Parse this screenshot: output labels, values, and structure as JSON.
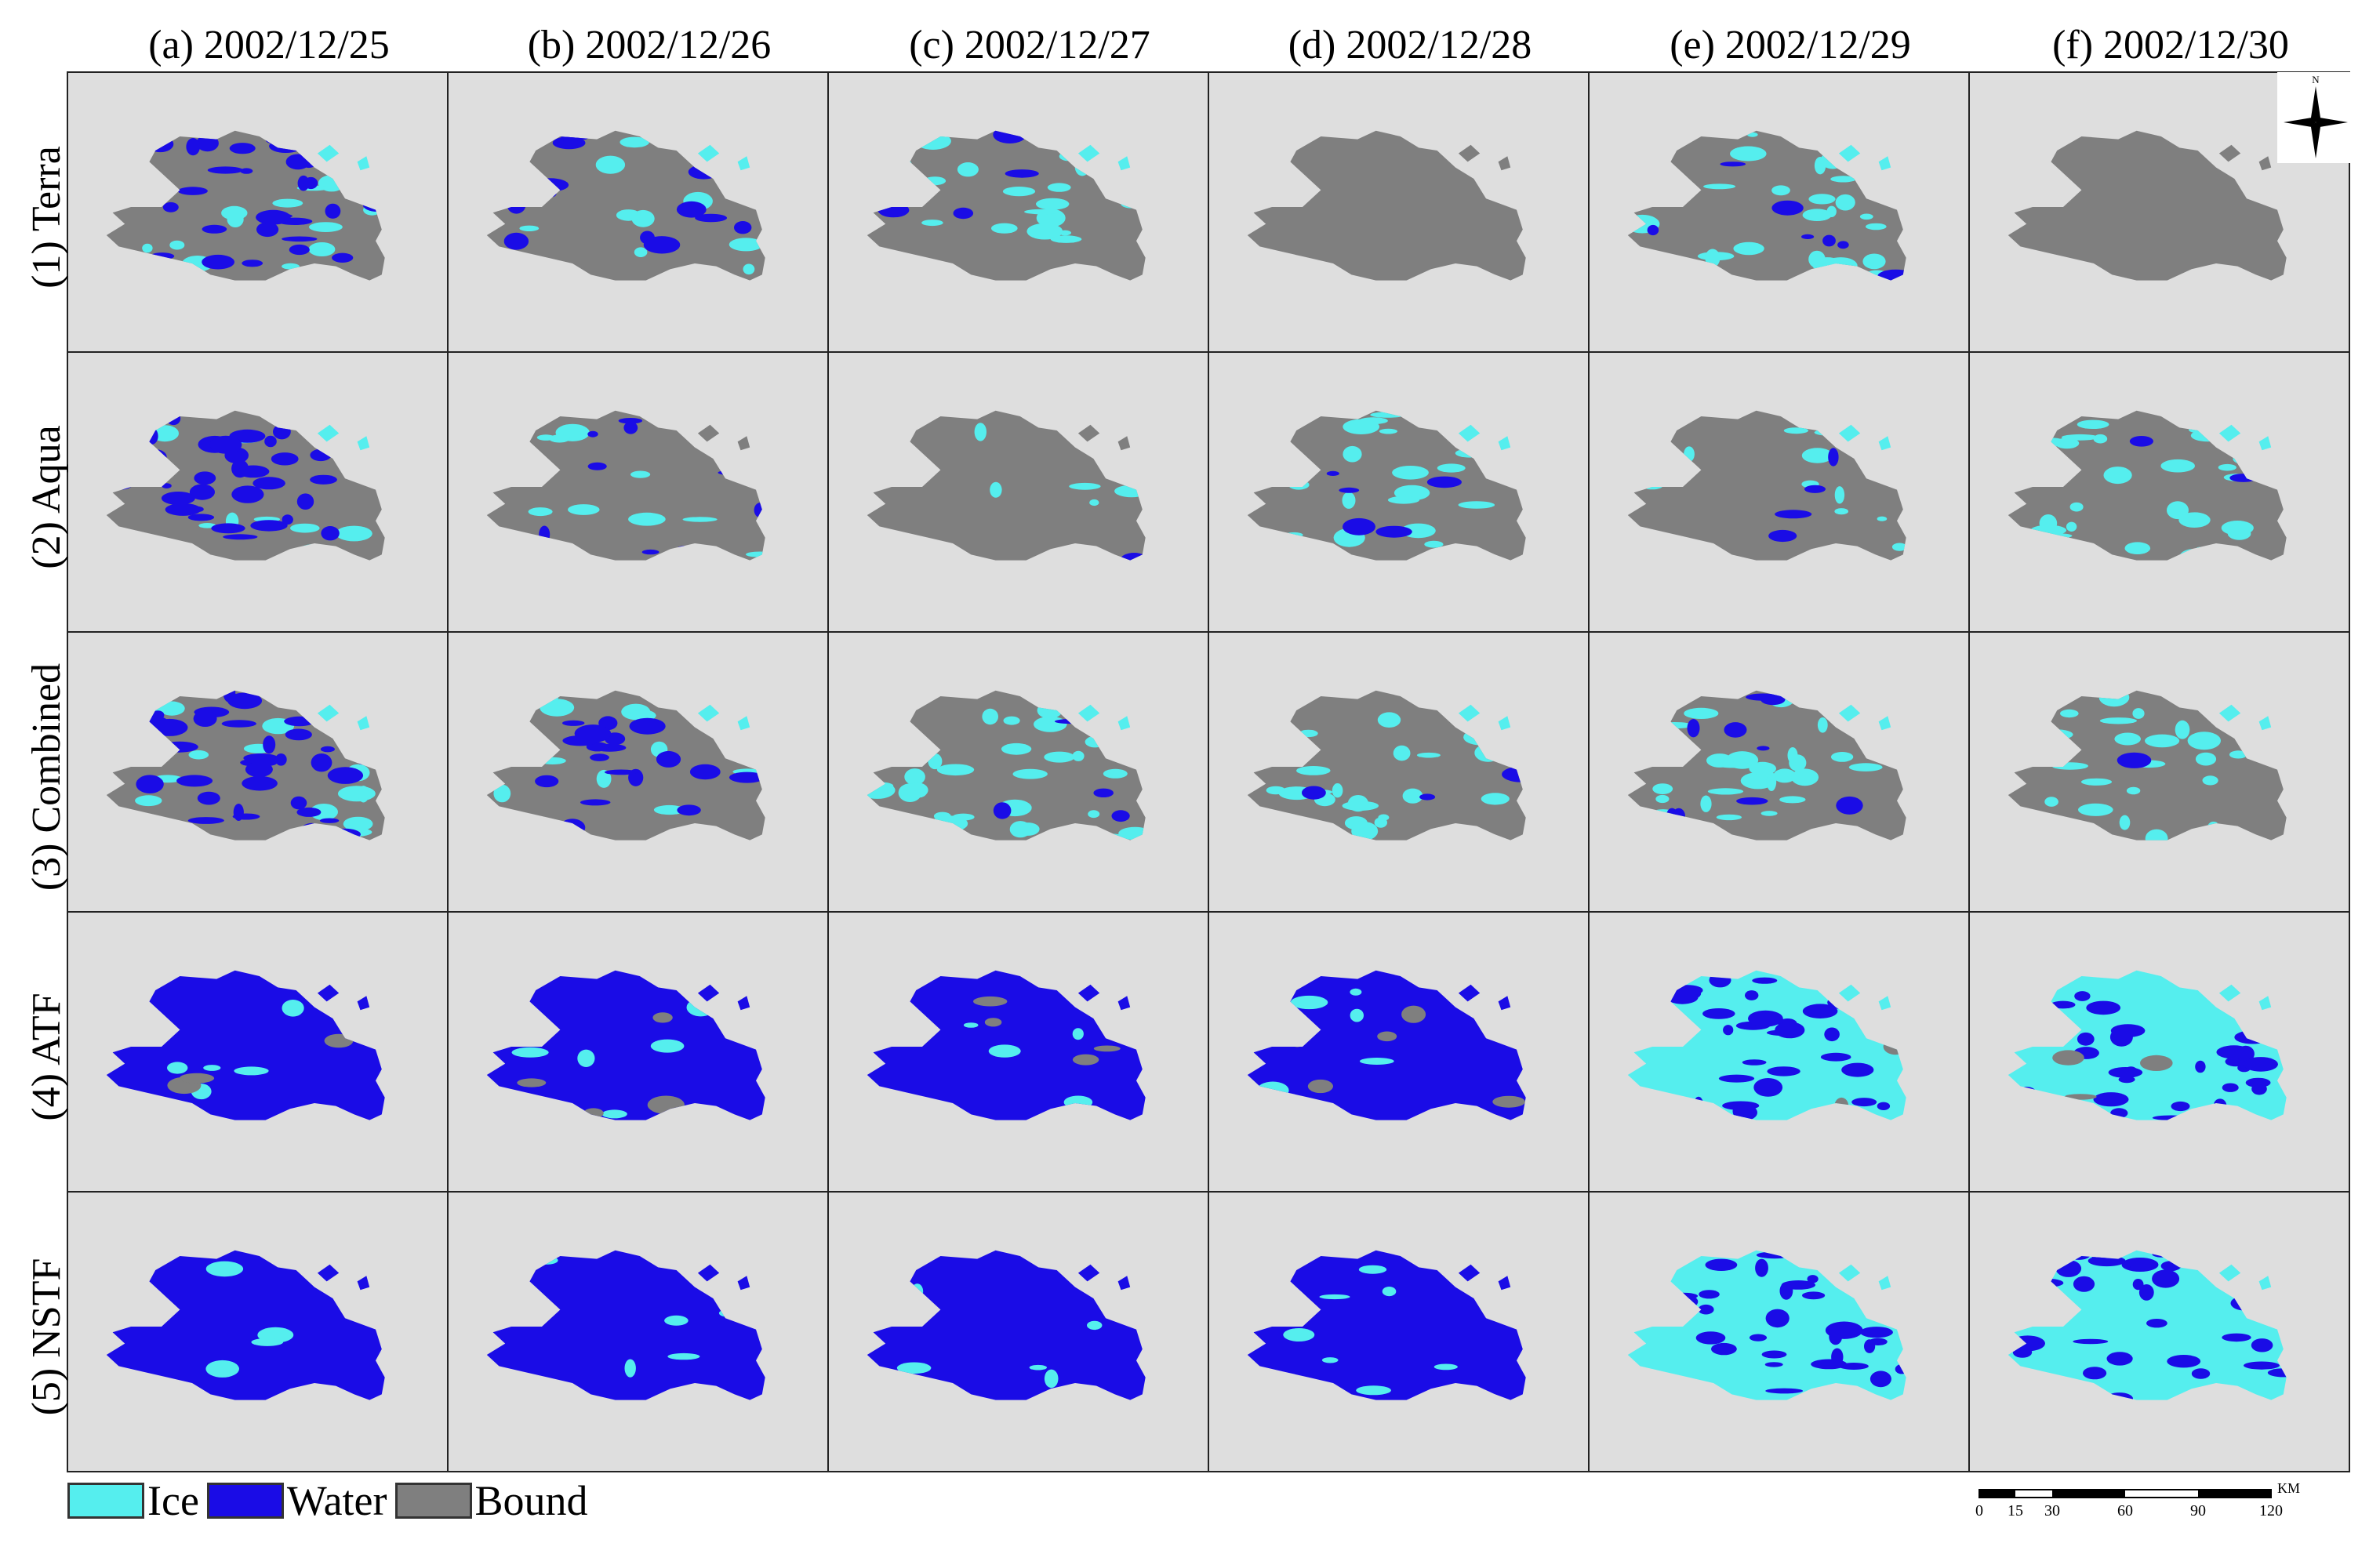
{
  "figure": {
    "columns": [
      {
        "label": "(a) 2002/12/25"
      },
      {
        "label": "(b) 2002/12/26"
      },
      {
        "label": "(c) 2002/12/27"
      },
      {
        "label": "(d) 2002/12/28"
      },
      {
        "label": "(e) 2002/12/29"
      },
      {
        "label": "(f) 2002/12/30"
      }
    ],
    "rows": [
      {
        "label": "(1) Terra"
      },
      {
        "label": "(2) Aqua"
      },
      {
        "label": "(3) Combined"
      },
      {
        "label": "(4) ATF"
      },
      {
        "label": "(5) NSTF"
      }
    ],
    "panels": [
      [
        {
          "ice": 0.14,
          "water": 0.38,
          "bound": 0.48
        },
        {
          "ice": 0.12,
          "water": 0.2,
          "bound": 0.68
        },
        {
          "ice": 0.32,
          "water": 0.05,
          "bound": 0.63
        },
        {
          "ice": 0.0,
          "water": 0.0,
          "bound": 1.0
        },
        {
          "ice": 0.28,
          "water": 0.1,
          "bound": 0.62
        },
        {
          "ice": 0.0,
          "water": 0.0,
          "bound": 1.0
        }
      ],
      [
        {
          "ice": 0.12,
          "water": 0.4,
          "bound": 0.48
        },
        {
          "ice": 0.1,
          "water": 0.14,
          "bound": 0.76
        },
        {
          "ice": 0.06,
          "water": 0.01,
          "bound": 0.93
        },
        {
          "ice": 0.24,
          "water": 0.06,
          "bound": 0.7
        },
        {
          "ice": 0.14,
          "water": 0.05,
          "bound": 0.81
        },
        {
          "ice": 0.3,
          "water": 0.02,
          "bound": 0.68
        }
      ],
      [
        {
          "ice": 0.16,
          "water": 0.4,
          "bound": 0.44
        },
        {
          "ice": 0.18,
          "water": 0.22,
          "bound": 0.6
        },
        {
          "ice": 0.32,
          "water": 0.06,
          "bound": 0.62
        },
        {
          "ice": 0.26,
          "water": 0.06,
          "bound": 0.68
        },
        {
          "ice": 0.3,
          "water": 0.12,
          "bound": 0.58
        },
        {
          "ice": 0.3,
          "water": 0.02,
          "bound": 0.68
        }
      ],
      [
        {
          "ice": 0.06,
          "water": 0.9,
          "bound": 0.04
        },
        {
          "ice": 0.08,
          "water": 0.88,
          "bound": 0.04
        },
        {
          "ice": 0.08,
          "water": 0.88,
          "bound": 0.04
        },
        {
          "ice": 0.08,
          "water": 0.86,
          "bound": 0.06
        },
        {
          "ice": 0.56,
          "water": 0.4,
          "bound": 0.04
        },
        {
          "ice": 0.6,
          "water": 0.36,
          "bound": 0.04
        }
      ],
      [
        {
          "ice": 0.05,
          "water": 0.95,
          "bound": 0.0
        },
        {
          "ice": 0.08,
          "water": 0.92,
          "bound": 0.0
        },
        {
          "ice": 0.08,
          "water": 0.92,
          "bound": 0.0
        },
        {
          "ice": 0.1,
          "water": 0.9,
          "bound": 0.0
        },
        {
          "ice": 0.6,
          "water": 0.4,
          "bound": 0.0
        },
        {
          "ice": 0.64,
          "water": 0.36,
          "bound": 0.0
        }
      ]
    ]
  },
  "legend": {
    "items": [
      {
        "label": "Ice",
        "color": "#55eeee"
      },
      {
        "label": "Water",
        "color": "#1a0ce6"
      },
      {
        "label": "Bound",
        "color": "#7f7f7f"
      }
    ]
  },
  "scale_bar": {
    "unit": "KM",
    "ticks": [
      "0",
      "15",
      "30",
      "60",
      "90",
      "120"
    ]
  },
  "north_arrow": {
    "label": "N"
  },
  "colors": {
    "background": "#dedede",
    "ice": "#55eeee",
    "water": "#1a0ce6",
    "bound": "#7f7f7f",
    "border": "#222222"
  }
}
